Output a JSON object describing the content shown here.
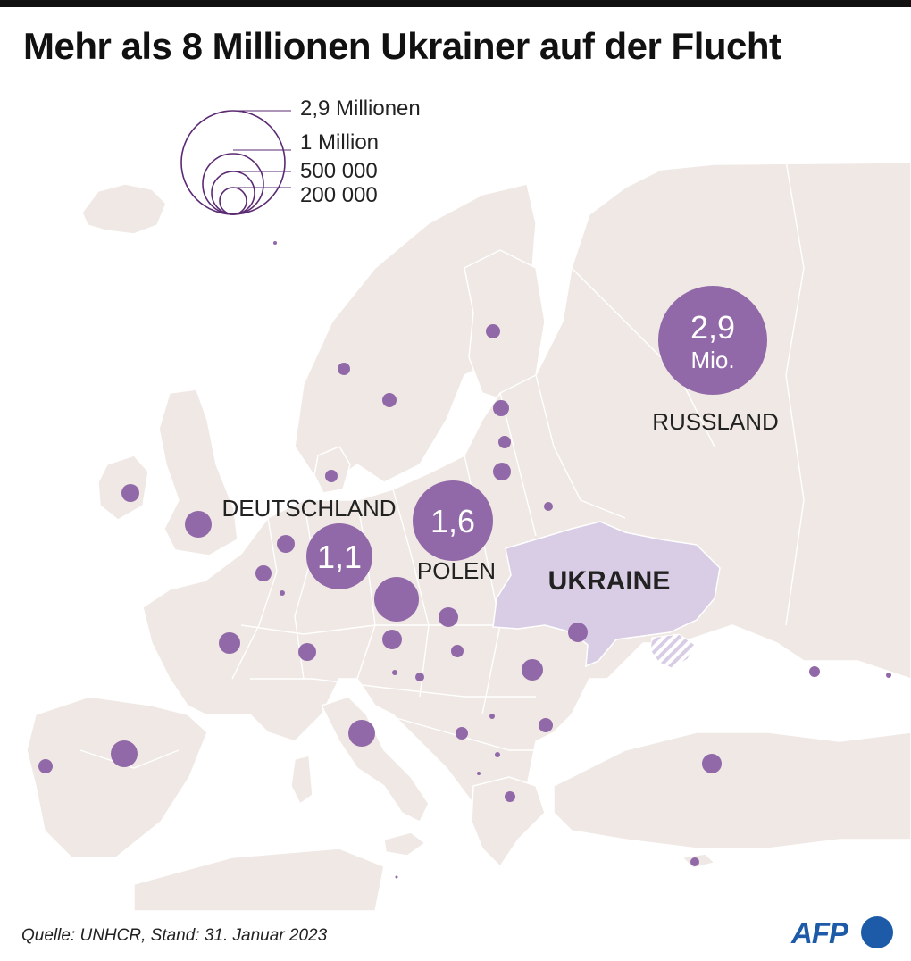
{
  "title": "Mehr als 8 Millionen Ukrainer auf der Flucht",
  "legend": {
    "items": [
      "2,9 Millionen",
      "1 Million",
      "500 000",
      "200 000"
    ]
  },
  "labels": {
    "russland_value": "2,9",
    "russland_unit": "Mio.",
    "russland_name": "RUSSLAND",
    "polen_value": "1,6",
    "polen_name": "POLEN",
    "deutschland_value": "1,1",
    "deutschland_name": "DEUTSCHLAND",
    "ukraine_name": "UKRAINE"
  },
  "colors": {
    "land": "#efe8e4",
    "border": "#ffffff",
    "bubble": "#9269a8",
    "ukraine": "#d9cde6",
    "legend_stroke": "#5b2a73",
    "text": "#222222",
    "afp_blue": "#1d5aa8"
  },
  "source": "Quelle: UNHCR, Stand: 31. Januar 2023",
  "logo": "AFP"
}
